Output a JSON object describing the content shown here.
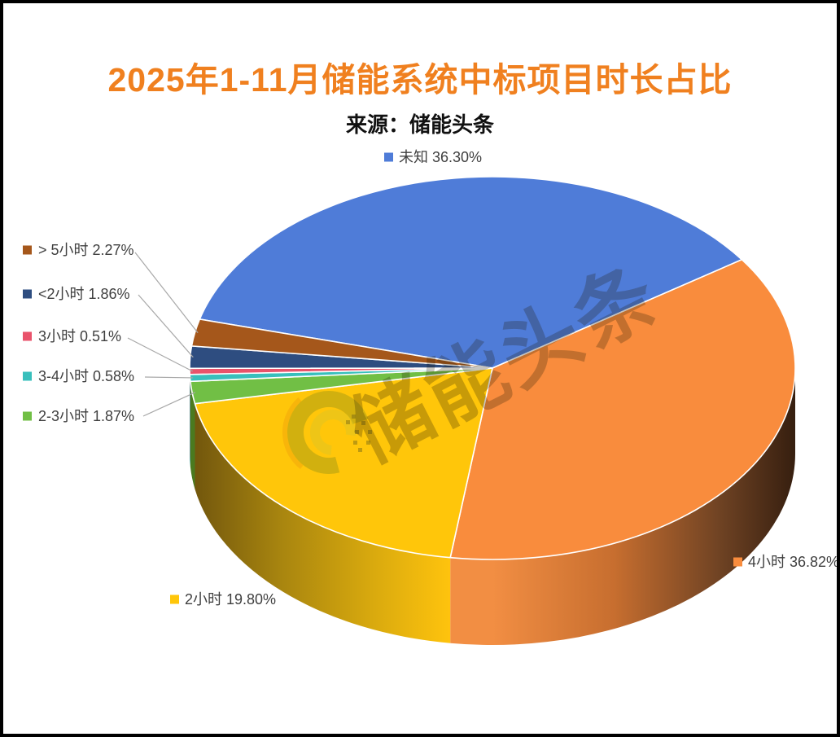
{
  "frame": {
    "border_color": "#000000",
    "background": "#FFFFFF"
  },
  "header": {
    "title": "2025年1-11月储能系统中标项目时长占比",
    "title_color": "#F0801F",
    "subtitle": "来源：储能头条"
  },
  "watermark": {
    "text": "储能头条",
    "logo": "crescent-swirl-logo"
  },
  "chart_data": {
    "type": "pie",
    "style": "3d",
    "title": "2025年1-11月储能系统中标项目时长占比",
    "source": "来源：储能头条",
    "unit": "percent",
    "direction": "clockwise",
    "start_angle_deg": -165.2,
    "legend_position": "around-slices",
    "slices": [
      {
        "label": "未知",
        "value": 36.3,
        "display": "未知 36.30%",
        "color": "#4F7CD8"
      },
      {
        "label": "4小时",
        "value": 36.82,
        "display": "4小时 36.82%",
        "color": "#F98C3D"
      },
      {
        "label": "2小时",
        "value": 19.8,
        "display": "2小时 19.80%",
        "color": "#FFC60A"
      },
      {
        "label": "2-3小时",
        "value": 1.87,
        "display": "2-3小时 1.87%",
        "color": "#71BF45"
      },
      {
        "label": "3-4小时",
        "value": 0.58,
        "display": "3-4小时 0.58%",
        "color": "#38BFBC"
      },
      {
        "label": "3小时",
        "value": 0.51,
        "display": "3小时 0.51%",
        "color": "#E9536B"
      },
      {
        "label": "<2小时",
        "value": 1.86,
        "display": "<2小时 1.86%",
        "color": "#2E4D80"
      },
      {
        "label": "> 5小时",
        "value": 2.27,
        "display": "> 5小时 2.27%",
        "color": "#A5571B"
      }
    ]
  }
}
